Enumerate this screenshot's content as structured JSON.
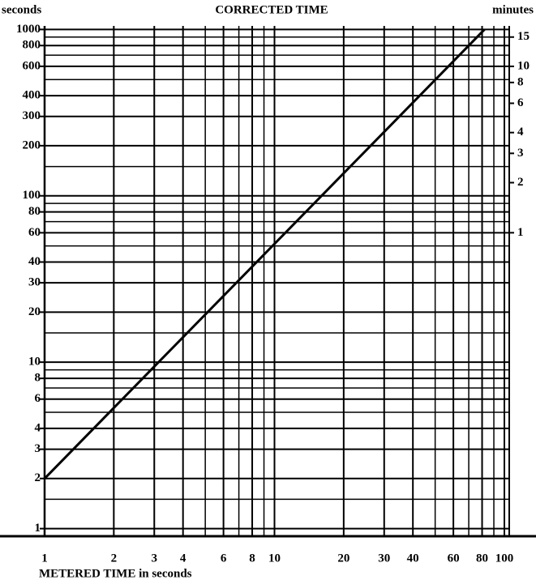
{
  "chart_data": {
    "type": "line",
    "title": "CORRECTED TIME",
    "y_label": "seconds",
    "y2_label": "minutes",
    "x_label": "METERED TIME in seconds",
    "x": [
      1,
      82
    ],
    "values": [
      2,
      1000
    ],
    "color": "#000000",
    "log_x": true,
    "log_y": true,
    "grid": true,
    "xlim": [
      1,
      100
    ],
    "ylim": [
      0.9,
      1050
    ],
    "y2lim": [
      0.015,
      17.5
    ],
    "xticks": [
      1,
      2,
      3,
      4,
      6,
      8,
      10,
      20,
      30,
      40,
      60,
      80,
      100
    ],
    "yticks": [
      1,
      2,
      3,
      4,
      6,
      8,
      10,
      20,
      30,
      40,
      60,
      80,
      100,
      200,
      300,
      400,
      600,
      800,
      1000
    ],
    "y2ticks": [
      1,
      2,
      3,
      4,
      6,
      8,
      10,
      15
    ]
  }
}
